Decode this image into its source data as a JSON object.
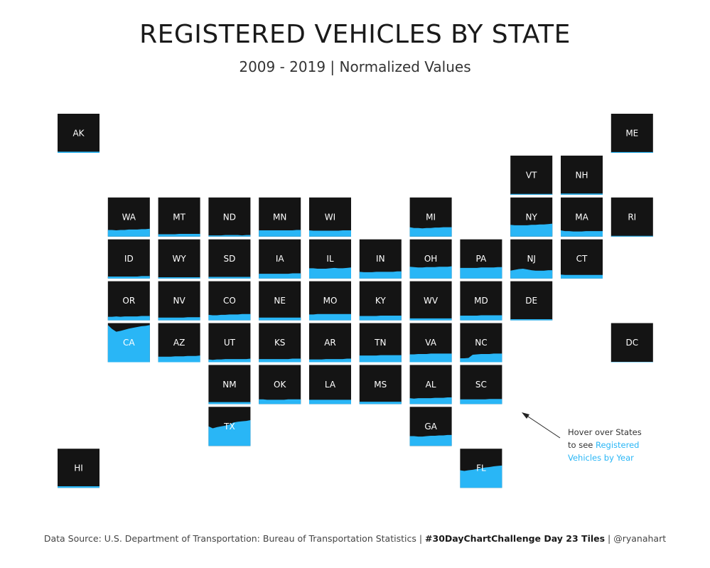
{
  "header": {
    "title": "REGISTERED VEHICLES BY STATE",
    "subtitle": "2009 - 2019 | Normalized Values"
  },
  "annotation": {
    "line1": "Hover over States",
    "line2_prefix": "to see ",
    "line2_highlight": "Registered",
    "line3_highlight": "Vehicles by Year"
  },
  "footer": {
    "source": "Data Source: U.S. Department of Transportation: Bureau of Transportation Statistics",
    "sep1": " | ",
    "challenge": "#30DayChartChallenge Day 23 Tiles",
    "sep2": " | ",
    "handle": "@ryanahart"
  },
  "colors": {
    "tile": "#141414",
    "area": "#29b6f6",
    "label": "#ffffff"
  },
  "chart_data": {
    "type": "area",
    "x": [
      2009,
      2010,
      2011,
      2012,
      2013,
      2014,
      2015,
      2016,
      2017,
      2018,
      2019
    ],
    "ylim": [
      0,
      1
    ],
    "tiles": [
      {
        "state": "AK",
        "row": 0,
        "col": 0,
        "values": [
          0.03,
          0.03,
          0.03,
          0.03,
          0.03,
          0.03,
          0.03,
          0.03,
          0.03,
          0.03,
          0.03
        ]
      },
      {
        "state": "ME",
        "row": 0,
        "col": 11,
        "values": [
          0.02,
          0.02,
          0.02,
          0.02,
          0.02,
          0.02,
          0.02,
          0.02,
          0.02,
          0.02,
          0.02
        ]
      },
      {
        "state": "VT",
        "row": 1,
        "col": 9,
        "values": [
          0.02,
          0.02,
          0.02,
          0.02,
          0.02,
          0.02,
          0.02,
          0.02,
          0.02,
          0.02,
          0.02
        ]
      },
      {
        "state": "NH",
        "row": 1,
        "col": 10,
        "values": [
          0.03,
          0.03,
          0.03,
          0.03,
          0.03,
          0.03,
          0.03,
          0.03,
          0.03,
          0.03,
          0.03
        ]
      },
      {
        "state": "WA",
        "row": 2,
        "col": 1,
        "values": [
          0.17,
          0.17,
          0.16,
          0.17,
          0.17,
          0.18,
          0.18,
          0.18,
          0.19,
          0.19,
          0.2
        ]
      },
      {
        "state": "MT",
        "row": 2,
        "col": 2,
        "values": [
          0.06,
          0.06,
          0.06,
          0.06,
          0.06,
          0.07,
          0.07,
          0.07,
          0.07,
          0.07,
          0.07
        ]
      },
      {
        "state": "ND",
        "row": 2,
        "col": 3,
        "values": [
          0.03,
          0.03,
          0.03,
          0.03,
          0.04,
          0.04,
          0.04,
          0.04,
          0.03,
          0.04,
          0.04
        ]
      },
      {
        "state": "MN",
        "row": 2,
        "col": 4,
        "values": [
          0.16,
          0.16,
          0.16,
          0.16,
          0.16,
          0.16,
          0.16,
          0.16,
          0.16,
          0.17,
          0.17
        ]
      },
      {
        "state": "WI",
        "row": 2,
        "col": 5,
        "values": [
          0.16,
          0.15,
          0.15,
          0.15,
          0.15,
          0.15,
          0.15,
          0.15,
          0.16,
          0.16,
          0.16
        ]
      },
      {
        "state": "MI",
        "row": 2,
        "col": 7,
        "values": [
          0.24,
          0.22,
          0.22,
          0.21,
          0.22,
          0.22,
          0.23,
          0.23,
          0.24,
          0.24,
          0.24
        ]
      },
      {
        "state": "NY",
        "row": 2,
        "col": 9,
        "values": [
          0.3,
          0.29,
          0.29,
          0.29,
          0.29,
          0.3,
          0.3,
          0.31,
          0.31,
          0.32,
          0.33
        ]
      },
      {
        "state": "MA",
        "row": 2,
        "col": 10,
        "values": [
          0.16,
          0.14,
          0.14,
          0.13,
          0.13,
          0.13,
          0.14,
          0.14,
          0.14,
          0.14,
          0.14
        ]
      },
      {
        "state": "RI",
        "row": 2,
        "col": 11,
        "values": [
          0.02,
          0.02,
          0.02,
          0.02,
          0.02,
          0.02,
          0.02,
          0.02,
          0.02,
          0.02,
          0.02
        ]
      },
      {
        "state": "ID",
        "row": 3,
        "col": 1,
        "values": [
          0.05,
          0.05,
          0.05,
          0.05,
          0.05,
          0.05,
          0.05,
          0.05,
          0.06,
          0.06,
          0.06
        ]
      },
      {
        "state": "WY",
        "row": 3,
        "col": 2,
        "values": [
          0.03,
          0.03,
          0.03,
          0.03,
          0.03,
          0.03,
          0.03,
          0.03,
          0.03,
          0.03,
          0.03
        ]
      },
      {
        "state": "SD",
        "row": 3,
        "col": 3,
        "values": [
          0.04,
          0.04,
          0.04,
          0.04,
          0.04,
          0.04,
          0.04,
          0.04,
          0.04,
          0.04,
          0.04
        ]
      },
      {
        "state": "IA",
        "row": 3,
        "col": 4,
        "values": [
          0.12,
          0.12,
          0.12,
          0.12,
          0.12,
          0.12,
          0.12,
          0.12,
          0.13,
          0.13,
          0.13
        ]
      },
      {
        "state": "IL",
        "row": 3,
        "col": 5,
        "values": [
          0.26,
          0.26,
          0.25,
          0.25,
          0.25,
          0.26,
          0.27,
          0.26,
          0.26,
          0.27,
          0.28
        ]
      },
      {
        "state": "IN",
        "row": 3,
        "col": 6,
        "values": [
          0.17,
          0.16,
          0.16,
          0.16,
          0.17,
          0.17,
          0.17,
          0.17,
          0.17,
          0.18,
          0.18
        ]
      },
      {
        "state": "OH",
        "row": 3,
        "col": 7,
        "values": [
          0.3,
          0.29,
          0.28,
          0.28,
          0.29,
          0.29,
          0.29,
          0.3,
          0.3,
          0.3,
          0.31
        ]
      },
      {
        "state": "PA",
        "row": 3,
        "col": 8,
        "values": [
          0.27,
          0.27,
          0.27,
          0.27,
          0.27,
          0.28,
          0.28,
          0.28,
          0.28,
          0.29,
          0.29
        ]
      },
      {
        "state": "NJ",
        "row": 3,
        "col": 9,
        "values": [
          0.2,
          0.22,
          0.24,
          0.25,
          0.23,
          0.21,
          0.2,
          0.2,
          0.2,
          0.21,
          0.21
        ]
      },
      {
        "state": "CT",
        "row": 3,
        "col": 10,
        "values": [
          0.1,
          0.09,
          0.09,
          0.09,
          0.09,
          0.09,
          0.09,
          0.09,
          0.09,
          0.09,
          0.09
        ]
      },
      {
        "state": "OR",
        "row": 4,
        "col": 1,
        "values": [
          0.09,
          0.09,
          0.1,
          0.09,
          0.1,
          0.1,
          0.1,
          0.1,
          0.11,
          0.11,
          0.11
        ]
      },
      {
        "state": "NV",
        "row": 4,
        "col": 2,
        "values": [
          0.07,
          0.07,
          0.07,
          0.07,
          0.07,
          0.07,
          0.07,
          0.08,
          0.08,
          0.08,
          0.08
        ]
      },
      {
        "state": "CO",
        "row": 4,
        "col": 3,
        "values": [
          0.14,
          0.13,
          0.13,
          0.14,
          0.14,
          0.15,
          0.15,
          0.15,
          0.16,
          0.16,
          0.16
        ]
      },
      {
        "state": "NE",
        "row": 4,
        "col": 4,
        "values": [
          0.07,
          0.07,
          0.07,
          0.07,
          0.07,
          0.07,
          0.07,
          0.07,
          0.07,
          0.07,
          0.07
        ]
      },
      {
        "state": "MO",
        "row": 4,
        "col": 5,
        "values": [
          0.15,
          0.15,
          0.16,
          0.16,
          0.16,
          0.16,
          0.16,
          0.16,
          0.16,
          0.16,
          0.16
        ]
      },
      {
        "state": "KY",
        "row": 4,
        "col": 6,
        "values": [
          0.11,
          0.11,
          0.11,
          0.11,
          0.11,
          0.12,
          0.12,
          0.12,
          0.12,
          0.12,
          0.12
        ]
      },
      {
        "state": "WV",
        "row": 4,
        "col": 7,
        "values": [
          0.05,
          0.05,
          0.05,
          0.05,
          0.05,
          0.05,
          0.05,
          0.05,
          0.05,
          0.05,
          0.05
        ]
      },
      {
        "state": "MD",
        "row": 4,
        "col": 8,
        "values": [
          0.12,
          0.12,
          0.12,
          0.12,
          0.12,
          0.13,
          0.13,
          0.13,
          0.13,
          0.13,
          0.13
        ]
      },
      {
        "state": "DE",
        "row": 4,
        "col": 9,
        "values": [
          0.03,
          0.03,
          0.03,
          0.03,
          0.03,
          0.03,
          0.03,
          0.03,
          0.03,
          0.03,
          0.03
        ]
      },
      {
        "state": "CA",
        "row": 5,
        "col": 1,
        "values": [
          0.95,
          0.85,
          0.78,
          0.8,
          0.83,
          0.86,
          0.88,
          0.9,
          0.92,
          0.93,
          0.95
        ]
      },
      {
        "state": "AZ",
        "row": 5,
        "col": 2,
        "values": [
          0.14,
          0.14,
          0.14,
          0.14,
          0.15,
          0.15,
          0.15,
          0.16,
          0.16,
          0.16,
          0.17
        ]
      },
      {
        "state": "UT",
        "row": 5,
        "col": 3,
        "values": [
          0.07,
          0.06,
          0.07,
          0.07,
          0.08,
          0.08,
          0.08,
          0.08,
          0.08,
          0.08,
          0.09
        ]
      },
      {
        "state": "KS",
        "row": 5,
        "col": 4,
        "values": [
          0.08,
          0.08,
          0.08,
          0.08,
          0.08,
          0.08,
          0.08,
          0.08,
          0.09,
          0.09,
          0.09
        ]
      },
      {
        "state": "AR",
        "row": 5,
        "col": 5,
        "values": [
          0.07,
          0.07,
          0.07,
          0.07,
          0.08,
          0.08,
          0.08,
          0.08,
          0.08,
          0.09,
          0.09
        ]
      },
      {
        "state": "TN",
        "row": 5,
        "col": 6,
        "values": [
          0.17,
          0.17,
          0.17,
          0.17,
          0.17,
          0.18,
          0.18,
          0.18,
          0.18,
          0.18,
          0.18
        ]
      },
      {
        "state": "VA",
        "row": 5,
        "col": 7,
        "values": [
          0.2,
          0.2,
          0.21,
          0.21,
          0.21,
          0.22,
          0.22,
          0.22,
          0.22,
          0.22,
          0.22
        ]
      },
      {
        "state": "NC",
        "row": 5,
        "col": 8,
        "values": [
          0.1,
          0.1,
          0.11,
          0.19,
          0.2,
          0.21,
          0.21,
          0.21,
          0.22,
          0.22,
          0.22
        ]
      },
      {
        "state": "DC",
        "row": 5,
        "col": 11,
        "values": [
          0.01,
          0.01,
          0.01,
          0.01,
          0.01,
          0.01,
          0.01,
          0.01,
          0.01,
          0.01,
          0.01
        ]
      },
      {
        "state": "NM",
        "row": 6,
        "col": 3,
        "values": [
          0.05,
          0.05,
          0.05,
          0.05,
          0.05,
          0.05,
          0.05,
          0.05,
          0.05,
          0.05,
          0.05
        ]
      },
      {
        "state": "OK",
        "row": 6,
        "col": 4,
        "values": [
          0.12,
          0.12,
          0.11,
          0.11,
          0.11,
          0.11,
          0.11,
          0.12,
          0.12,
          0.12,
          0.12
        ]
      },
      {
        "state": "LA",
        "row": 6,
        "col": 5,
        "values": [
          0.11,
          0.11,
          0.11,
          0.11,
          0.11,
          0.11,
          0.11,
          0.11,
          0.11,
          0.11,
          0.11
        ]
      },
      {
        "state": "MS",
        "row": 6,
        "col": 6,
        "values": [
          0.06,
          0.06,
          0.06,
          0.06,
          0.06,
          0.06,
          0.06,
          0.06,
          0.06,
          0.06,
          0.06
        ]
      },
      {
        "state": "AL",
        "row": 6,
        "col": 7,
        "values": [
          0.15,
          0.14,
          0.15,
          0.15,
          0.15,
          0.15,
          0.16,
          0.16,
          0.16,
          0.17,
          0.17
        ]
      },
      {
        "state": "SC",
        "row": 6,
        "col": 8,
        "values": [
          0.12,
          0.12,
          0.12,
          0.12,
          0.12,
          0.12,
          0.12,
          0.13,
          0.13,
          0.13,
          0.13
        ]
      },
      {
        "state": "TX",
        "row": 7,
        "col": 3,
        "values": [
          0.5,
          0.45,
          0.48,
          0.5,
          0.52,
          0.55,
          0.6,
          0.62,
          0.63,
          0.64,
          0.66
        ]
      },
      {
        "state": "GA",
        "row": 7,
        "col": 7,
        "values": [
          0.25,
          0.25,
          0.24,
          0.24,
          0.25,
          0.26,
          0.26,
          0.27,
          0.27,
          0.28,
          0.28
        ]
      },
      {
        "state": "HI",
        "row": 8,
        "col": 0,
        "values": [
          0.04,
          0.04,
          0.04,
          0.04,
          0.04,
          0.04,
          0.04,
          0.04,
          0.04,
          0.04,
          0.04
        ]
      },
      {
        "state": "FL",
        "row": 8,
        "col": 8,
        "values": [
          0.45,
          0.43,
          0.45,
          0.46,
          0.48,
          0.5,
          0.52,
          0.53,
          0.55,
          0.56,
          0.57
        ]
      }
    ]
  }
}
